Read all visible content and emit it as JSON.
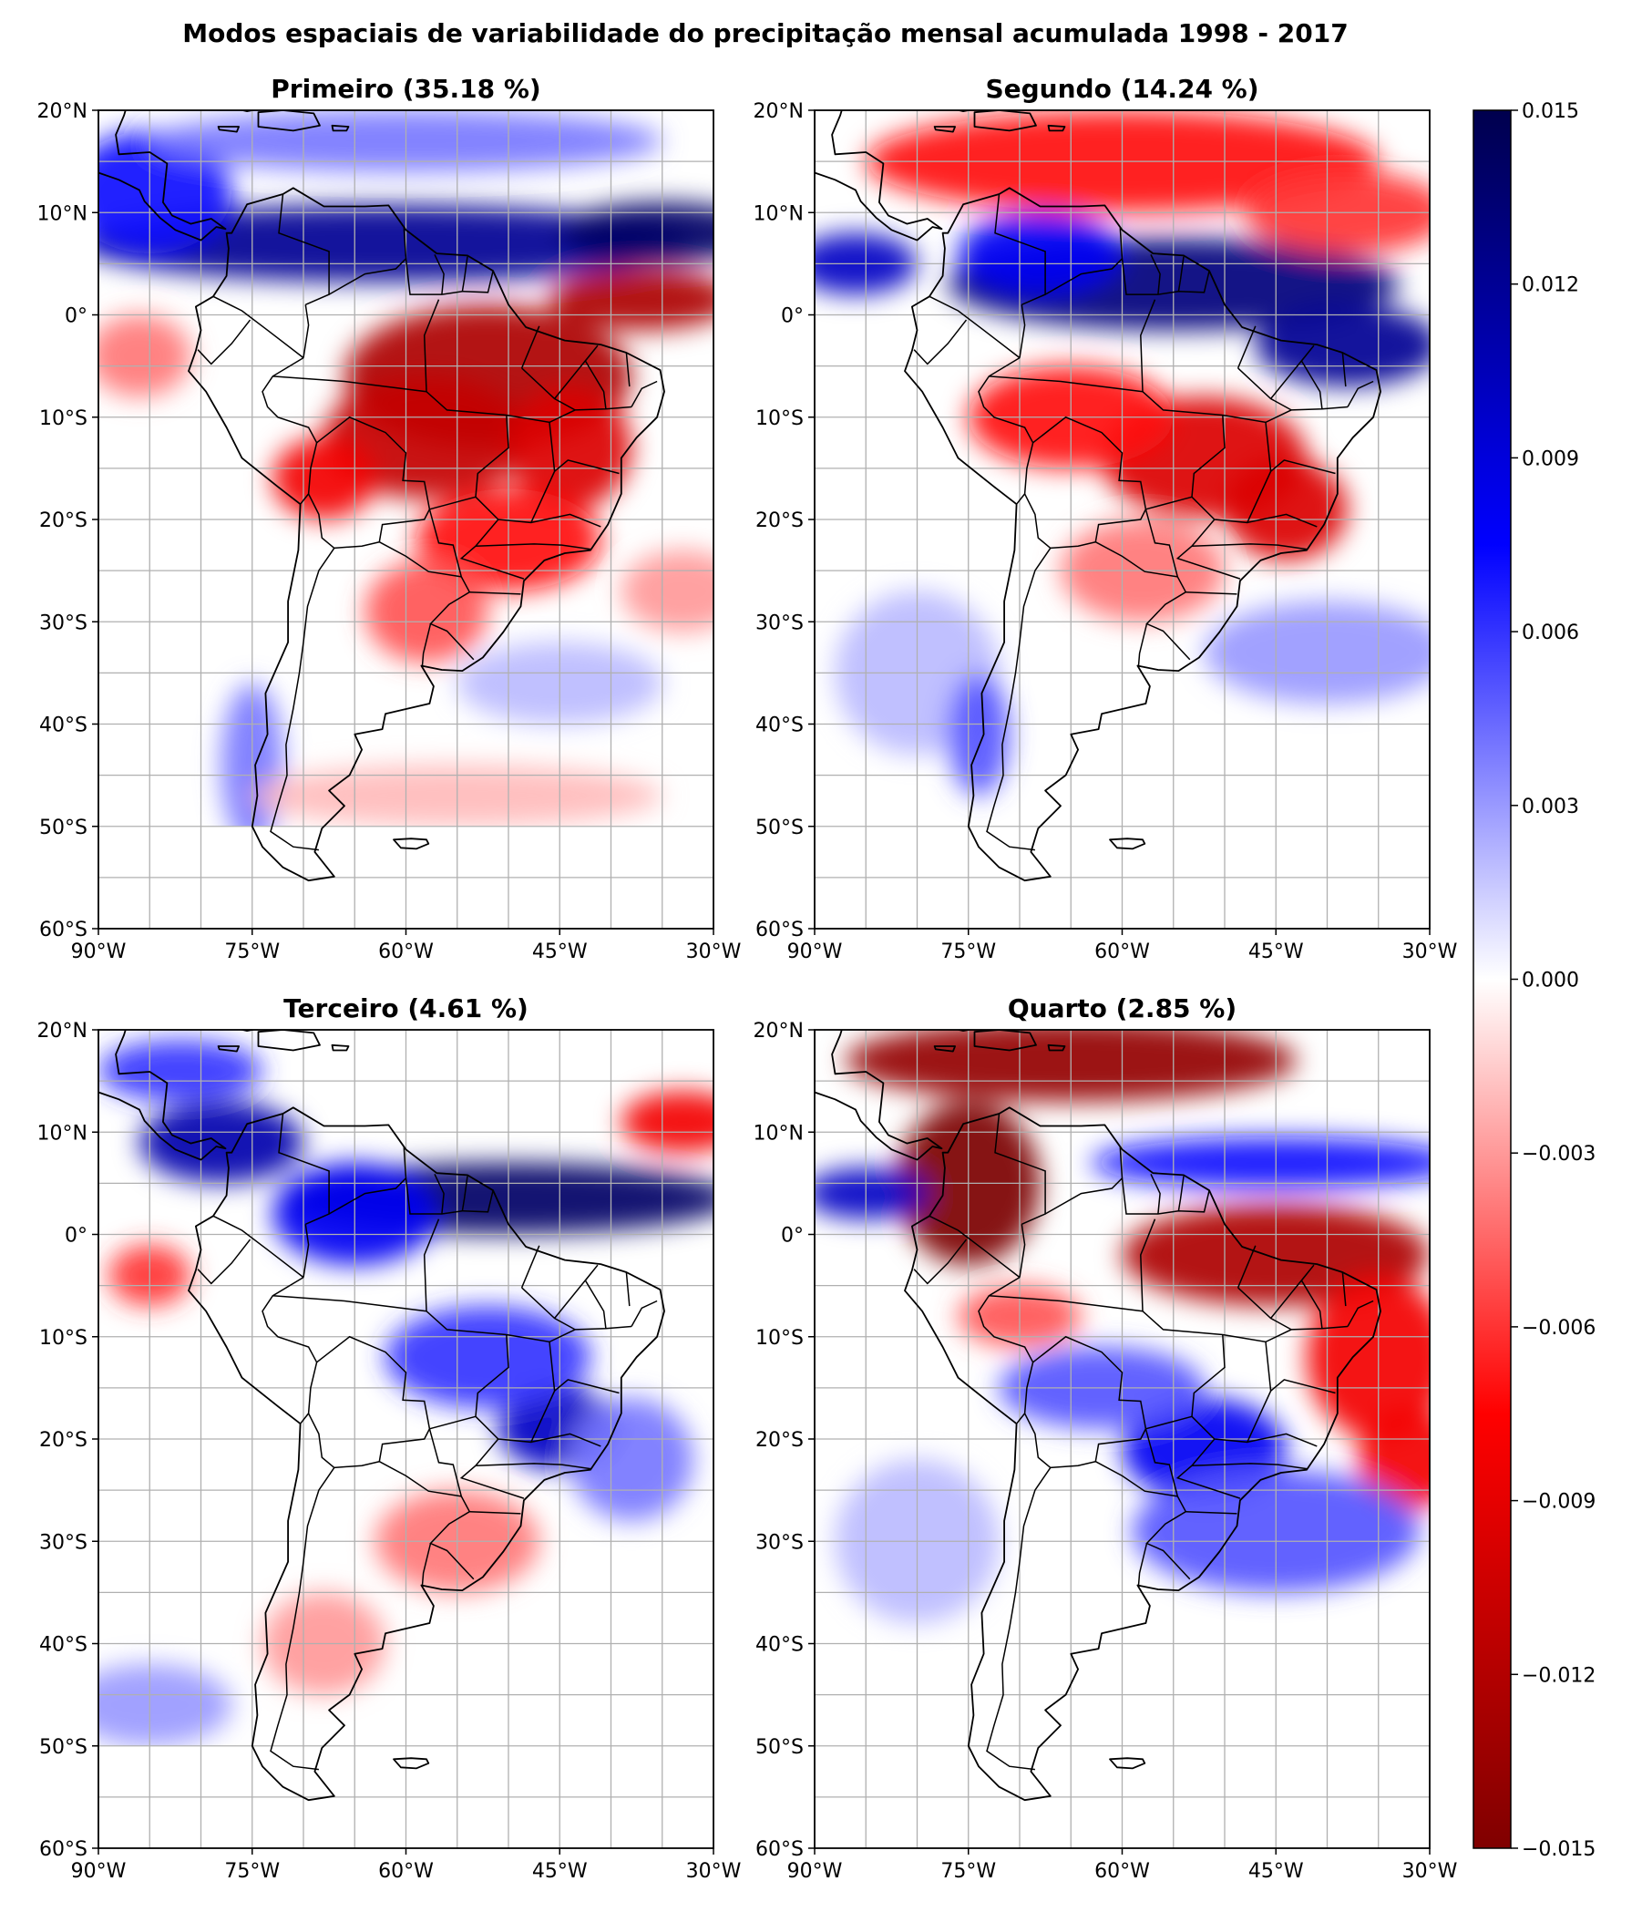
{
  "figure": {
    "title": "Modos espaciais de variabilidade do precipitação mensal acumulada 1998 - 2017"
  },
  "map": {
    "lon_range": [
      -90,
      -30
    ],
    "lat_range": [
      -60,
      20
    ],
    "lon_ticks": [
      "90°W",
      "75°W",
      "60°W",
      "45°W",
      "30°W"
    ],
    "lat_ticks": [
      "20°N",
      "10°N",
      "0°",
      "10°S",
      "20°S",
      "30°S",
      "40°S",
      "50°S",
      "60°S"
    ],
    "gridlines": true,
    "data_extent_lat": [
      -50,
      20
    ]
  },
  "panels": [
    {
      "title": "Primeiro (35.18 %)"
    },
    {
      "title": "Segundo (14.24 %)"
    },
    {
      "title": "Terceiro (4.61 %)"
    },
    {
      "title": "Quarto (2.85 %)"
    }
  ],
  "colorbar": {
    "min": -0.015,
    "max": 0.015,
    "ticks": [
      "0.015",
      "0.012",
      "0.009",
      "0.006",
      "0.003",
      "0.000",
      "−0.003",
      "−0.006",
      "−0.009",
      "−0.012",
      "−0.015"
    ],
    "colormap": "seismic_r",
    "colors": {
      "high": "#00004d",
      "mid_high": "#0000ff",
      "zero": "#ffffff",
      "mid_low": "#ff0000",
      "low": "#800000"
    }
  }
}
